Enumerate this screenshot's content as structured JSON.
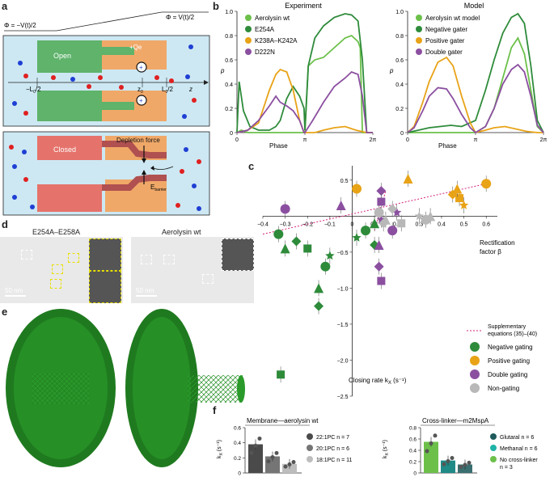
{
  "panels": {
    "a": "a",
    "b": "b",
    "c": "c",
    "d": "d",
    "e": "e",
    "f": "f"
  },
  "panel_a": {
    "phi_left": "Φ = −V(t)/2",
    "phi_right": "Φ = V(t)/2",
    "open_label": "Open",
    "charge_label": "+Qe",
    "plus": "+",
    "axis_left": "−L",
    "axis_left_sub": "0",
    "axis_left_tail": "/2",
    "z0": "z",
    "z0_sub": "0",
    "axis_right": "L",
    "axis_right_sub": "0",
    "axis_right_tail": "/2",
    "z": "z",
    "closed_label": "Closed",
    "depletion_label": "Depletion force",
    "barrier_label": "E",
    "barrier_sub": "barrier"
  },
  "panel_b": {
    "experiment_title": "Experiment",
    "model_title": "Model",
    "ylabel": "p",
    "xlabel": "Phase",
    "xticks": [
      "0",
      "π",
      "2π"
    ],
    "yticks": [
      "0",
      "0.2",
      "0.4",
      "0.6",
      "0.8",
      "1.0"
    ],
    "experiment_legend": [
      "Aerolysin wt",
      "E254A",
      "K238A–K242A",
      "D222N"
    ],
    "model_legend": [
      "Aerolysin wt model",
      "Negative gater",
      "Positive gater",
      "Double gater"
    ],
    "colors": {
      "light_green": "#6cc04a",
      "dark_green": "#2e8b3a",
      "orange": "#e8a317",
      "purple": "#8b4fa0"
    }
  },
  "chart_data": [
    {
      "type": "line",
      "title": "Experiment",
      "xlabel": "Phase",
      "ylabel": "p",
      "xlim": [
        0,
        6.283
      ],
      "ylim": [
        0,
        1.0
      ],
      "series": [
        {
          "name": "Aerolysin wt",
          "color": "#6cc04a",
          "x": [
            0,
            0.2,
            0.5,
            1.0,
            1.5,
            2.0,
            2.5,
            2.9,
            3.1,
            3.14,
            3.3,
            3.6,
            4.0,
            4.5,
            5.0,
            5.3,
            5.6,
            5.7,
            5.8,
            6.0,
            6.283
          ],
          "y": [
            0,
            0.02,
            0.0,
            0.0,
            0.0,
            0.0,
            0.0,
            0.0,
            0.0,
            0.0,
            0.55,
            0.6,
            0.62,
            0.7,
            0.78,
            0.8,
            0.75,
            0.7,
            0.0,
            0.0,
            0.0
          ]
        },
        {
          "name": "E254A",
          "color": "#2e8b3a",
          "x": [
            0,
            0.1,
            0.3,
            0.6,
            1.0,
            1.5,
            1.8,
            2.0,
            2.3,
            2.6,
            2.9,
            3.1,
            3.14,
            3.3,
            3.6,
            4.0,
            4.5,
            5.0,
            5.3,
            5.6,
            5.8,
            6.0,
            6.283
          ],
          "y": [
            0.0,
            0.42,
            0.18,
            0.05,
            0.02,
            0.02,
            0.05,
            0.1,
            0.28,
            0.38,
            0.3,
            0.2,
            0.02,
            0.55,
            0.78,
            0.88,
            0.95,
            0.98,
            0.97,
            0.92,
            0.6,
            0.0,
            0.0
          ]
        },
        {
          "name": "K238A–K242A",
          "color": "#e8a317",
          "x": [
            0,
            0.5,
            1.0,
            1.5,
            1.8,
            2.0,
            2.3,
            2.6,
            2.9,
            3.1,
            3.3,
            3.6,
            4.0,
            4.5,
            5.0,
            5.5,
            6.0,
            6.283
          ],
          "y": [
            0.0,
            0.02,
            0.08,
            0.35,
            0.48,
            0.52,
            0.5,
            0.35,
            0.1,
            0.0,
            0.0,
            0.0,
            0.02,
            0.04,
            0.05,
            0.02,
            0.0,
            0.0
          ]
        },
        {
          "name": "D222N",
          "color": "#8b4fa0",
          "x": [
            0,
            0.5,
            1.0,
            1.5,
            1.8,
            2.0,
            2.3,
            2.6,
            2.9,
            3.1,
            3.14,
            3.5,
            4.0,
            4.5,
            5.0,
            5.3,
            5.6,
            5.8,
            6.0,
            6.283
          ],
          "y": [
            0.0,
            0.02,
            0.1,
            0.22,
            0.3,
            0.25,
            0.22,
            0.18,
            0.1,
            0.0,
            0.0,
            0.1,
            0.25,
            0.38,
            0.45,
            0.5,
            0.48,
            0.3,
            0.0,
            0.0
          ]
        }
      ]
    },
    {
      "type": "line",
      "title": "Model",
      "xlabel": "Phase",
      "ylabel": "p",
      "xlim": [
        0,
        6.283
      ],
      "ylim": [
        0,
        1.0
      ],
      "series": [
        {
          "name": "Aerolysin wt model",
          "color": "#6cc04a",
          "x": [
            0,
            0.5,
            1.0,
            1.5,
            2.0,
            2.5,
            3.14,
            3.6,
            4.0,
            4.4,
            4.8,
            5.1,
            5.4,
            5.7,
            6.0,
            6.283
          ],
          "y": [
            0.0,
            0.0,
            0.0,
            0.0,
            0.0,
            0.0,
            0.0,
            0.05,
            0.2,
            0.45,
            0.7,
            0.78,
            0.65,
            0.35,
            0.05,
            0.0
          ]
        },
        {
          "name": "Negative gater",
          "color": "#2e8b3a",
          "x": [
            0,
            0.5,
            1.0,
            1.5,
            2.0,
            2.5,
            3.14,
            3.6,
            4.0,
            4.4,
            4.8,
            5.1,
            5.4,
            5.7,
            6.0,
            6.283
          ],
          "y": [
            0.0,
            0.02,
            0.04,
            0.05,
            0.06,
            0.05,
            0.1,
            0.35,
            0.6,
            0.82,
            0.95,
            0.98,
            0.9,
            0.55,
            0.1,
            0.0
          ]
        },
        {
          "name": "Positive gater",
          "color": "#e8a317",
          "x": [
            0,
            0.3,
            0.7,
            1.0,
            1.4,
            1.8,
            2.1,
            2.5,
            2.9,
            3.14,
            3.6,
            4.0,
            4.5,
            5.0,
            5.5,
            6.0,
            6.283
          ],
          "y": [
            0.0,
            0.05,
            0.25,
            0.42,
            0.58,
            0.62,
            0.55,
            0.3,
            0.08,
            0.0,
            0.02,
            0.04,
            0.05,
            0.03,
            0.01,
            0.0,
            0.0
          ]
        },
        {
          "name": "Double gater",
          "color": "#8b4fa0",
          "x": [
            0,
            0.3,
            0.7,
            1.0,
            1.4,
            1.8,
            2.1,
            2.5,
            2.9,
            3.14,
            3.6,
            4.0,
            4.4,
            4.8,
            5.1,
            5.4,
            5.7,
            6.0,
            6.283
          ],
          "y": [
            0.0,
            0.04,
            0.18,
            0.3,
            0.37,
            0.36,
            0.28,
            0.15,
            0.04,
            0.0,
            0.05,
            0.2,
            0.4,
            0.52,
            0.56,
            0.5,
            0.3,
            0.06,
            0.0
          ]
        }
      ]
    },
    {
      "type": "scatter",
      "xlabel": "Rectification factor β",
      "ylabel": "Closing rate  k_x (s⁻¹)",
      "xlim": [
        -0.4,
        0.65
      ],
      "ylim": [
        -2.5,
        0.7
      ],
      "xticks": [
        "−0.4",
        "−0.3",
        "−0.2",
        "−0.1",
        "0",
        "0.1",
        "0.2",
        "0.3",
        "0.4",
        "0.5",
        "0.6"
      ],
      "yticks": [
        "0.5",
        "−0.5",
        "−1.0",
        "−1.5",
        "−2.0",
        "−2.5"
      ],
      "legend": [
        "Supplementary equations (35)–(40)",
        "Negative gating",
        "Positive gating",
        "Double gating",
        "Non-gating"
      ],
      "series": [
        {
          "name": "Negative gating",
          "color": "#2e8b3a",
          "points": [
            [
              -0.33,
              -0.25
            ],
            [
              -0.3,
              -0.45
            ],
            [
              -0.25,
              -0.35
            ],
            [
              -0.2,
              -0.45
            ],
            [
              -0.1,
              -0.55
            ],
            [
              -0.12,
              -0.7
            ],
            [
              -0.15,
              -1.0
            ],
            [
              -0.15,
              -1.25
            ],
            [
              -0.32,
              -2.2
            ],
            [
              0.02,
              -0.3
            ],
            [
              0.06,
              -0.2
            ],
            [
              0.1,
              -0.1
            ],
            [
              0.1,
              -0.4
            ]
          ]
        },
        {
          "name": "Positive gating",
          "color": "#e8a317",
          "points": [
            [
              0.02,
              0.38
            ],
            [
              0.25,
              0.52
            ],
            [
              0.45,
              0.3
            ],
            [
              0.48,
              0.25
            ],
            [
              0.5,
              0.15
            ],
            [
              0.6,
              0.45
            ],
            [
              0.47,
              0.38
            ]
          ]
        },
        {
          "name": "Double gating",
          "color": "#8b4fa0",
          "points": [
            [
              -0.3,
              0.1
            ],
            [
              -0.05,
              0.15
            ],
            [
              0.13,
              0.35
            ],
            [
              0.13,
              0.2
            ],
            [
              0.2,
              0.05
            ],
            [
              0.18,
              -0.2
            ],
            [
              0.12,
              -0.4
            ],
            [
              0.12,
              -0.7
            ],
            [
              0.13,
              -0.9
            ],
            [
              0.13,
              -0.05
            ]
          ]
        },
        {
          "name": "Non-gating",
          "color": "#b8b8b8",
          "points": [
            [
              0.12,
              0.05
            ],
            [
              0.15,
              -0.05
            ],
            [
              0.18,
              0.1
            ],
            [
              0.22,
              -0.1
            ],
            [
              0.3,
              0.0
            ],
            [
              0.33,
              -0.05
            ],
            [
              0.35,
              0.0
            ],
            [
              0.14,
              -0.1
            ]
          ]
        }
      ],
      "fit_lines": [
        {
          "from": [
            -0.4,
            -0.25
          ],
          "to": [
            0.6,
            0.45
          ],
          "color": "#d4237a"
        },
        {
          "from": [
            0.1,
            -0.2
          ],
          "to": [
            0.15,
            0.35
          ],
          "color": "#d4237a"
        }
      ]
    },
    {
      "type": "bar",
      "title": "Membrane—aerolysin wt",
      "ylabel": "k_X (s⁻¹)",
      "ylim": [
        0,
        0.6
      ],
      "yticks": [
        "0",
        "0.2",
        "0.4",
        "0.6"
      ],
      "categories": [
        "22:1PC",
        "20:1PC",
        "18:1PC"
      ],
      "values": [
        0.38,
        0.22,
        0.12
      ],
      "n": [
        "n = 7",
        "n = 6",
        "n = 11"
      ],
      "colors": [
        "#4a4a4a",
        "#757575",
        "#bdbdbd"
      ]
    },
    {
      "type": "bar",
      "title": "Cross-linker—m2MspA",
      "ylabel": "k_X (s⁻¹)",
      "ylim": [
        0,
        0.8
      ],
      "yticks": [
        "0",
        "0.2",
        "0.4",
        "0.6",
        "0.8"
      ],
      "categories": [
        "Glutaral",
        "Methanal",
        "No cross-linker"
      ],
      "values": [
        0.55,
        0.22,
        0.15
      ],
      "n": [
        "n = 6",
        "n = 6",
        "n = 3"
      ],
      "colors": [
        "#6cc04a",
        "#1f8a86",
        "#3a6f70"
      ]
    }
  ],
  "panel_c": {
    "x_title_1": "Rectification",
    "x_title_2": "factor β",
    "y_title": "Closing rate  k",
    "y_title_sub": "X",
    "y_title_tail": " (s⁻¹)",
    "legend": {
      "fit": "Supplementary",
      "fit2": "equations (35)–(40)",
      "neg": "Negative gating",
      "pos": "Positive gating",
      "dbl": "Double gating",
      "non": "Non-gating"
    }
  },
  "panel_d": {
    "left_title": "E254A–E258A",
    "right_title": "Aerolysin wt",
    "scale_left": "50 nm",
    "scale_right": "50 nm"
  },
  "panel_f": {
    "left_title": "Membrane—aerolysin wt",
    "right_title": "Cross-linker—m2MspA",
    "ylabel": "k",
    "ylabel_sub": "X",
    "ylabel_tail": " (s⁻¹)",
    "left_legend": [
      {
        "label": "22:1PC  n = 7",
        "color": "#4a4a4a"
      },
      {
        "label": "20:1PC  n = 6",
        "color": "#757575"
      },
      {
        "label": "18:1PC  n = 11",
        "color": "#bdbdbd"
      }
    ],
    "right_legend": [
      {
        "label": "Glutaral  n = 6",
        "color": "#1f5a5c"
      },
      {
        "label": "Methanal  n = 6",
        "color": "#1fb3a8"
      },
      {
        "label": "No cross-linker",
        "color": "#6cc04a"
      }
    ],
    "right_legend_extra": "n = 3"
  }
}
